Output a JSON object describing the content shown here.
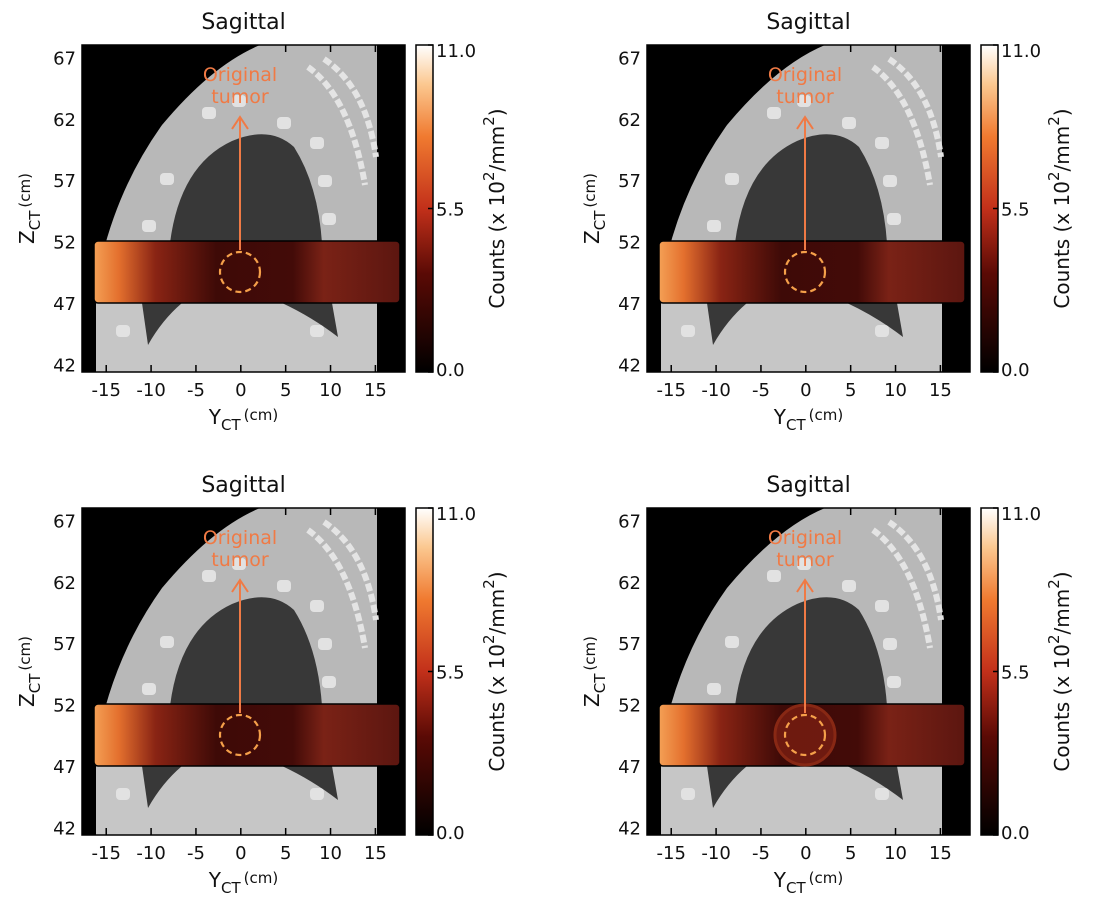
{
  "chart_data": [
    {
      "type": "heatmap",
      "title": "Sagittal",
      "x_label": {
        "main": "Y",
        "sub": "CT",
        "unit": "(cm)"
      },
      "y_label": {
        "main": "Z",
        "sub": "CT",
        "unit": "(cm)"
      },
      "colorbar_label": [
        "Counts (x 10",
        "2",
        "/mm",
        "2",
        ")"
      ],
      "annotation": [
        "Original",
        "tumor"
      ],
      "xlim": [
        -17.7,
        18.3
      ],
      "xticks": [
        -15,
        -10,
        -5,
        0,
        5,
        10,
        15
      ],
      "ylim": [
        41.4,
        68
      ],
      "yticks": [
        42,
        47,
        52,
        57,
        62,
        67
      ],
      "clim": [
        0,
        11
      ],
      "cticks": [
        {
          "value": 0,
          "label": "0.0"
        },
        5.5,
        {
          "value": 11,
          "label": "11.0"
        }
      ]
    },
    {
      "type": "heatmap",
      "title": "Sagittal",
      "x_label": {
        "main": "Y",
        "sub": "CT",
        "unit": "(cm)"
      },
      "y_label": {
        "main": "Z",
        "sub": "CT",
        "unit": "(cm)"
      },
      "colorbar_label": [
        "Counts (x 10",
        "2",
        "/mm",
        "2",
        ")"
      ],
      "annotation": [
        "Original",
        "tumor"
      ],
      "xlim": [
        -17.7,
        18.3
      ],
      "xticks": [
        -15,
        -10,
        -5,
        0,
        5,
        10,
        15
      ],
      "ylim": [
        41.4,
        68
      ],
      "yticks": [
        42,
        47,
        52,
        57,
        62,
        67
      ],
      "clim": [
        0,
        11
      ],
      "cticks": [
        {
          "value": 0,
          "label": "0.0"
        },
        5.5,
        {
          "value": 11,
          "label": "11.0"
        }
      ]
    },
    {
      "type": "heatmap",
      "title": "Sagittal",
      "x_label": {
        "main": "Y",
        "sub": "CT",
        "unit": "(cm)"
      },
      "y_label": {
        "main": "Z",
        "sub": "CT",
        "unit": "(cm)"
      },
      "colorbar_label": [
        "Counts (x 10",
        "2",
        "/mm",
        "2",
        ")"
      ],
      "annotation": [
        "Original",
        "tumor"
      ],
      "xlim": [
        -17.7,
        18.3
      ],
      "xticks": [
        -15,
        -10,
        -5,
        0,
        5,
        10,
        15
      ],
      "ylim": [
        41.4,
        68
      ],
      "yticks": [
        42,
        47,
        52,
        57,
        62,
        67
      ],
      "clim": [
        0,
        11
      ],
      "cticks": [
        {
          "value": 0,
          "label": "0.0"
        },
        5.5,
        {
          "value": 11,
          "label": "11.0"
        }
      ]
    },
    {
      "type": "heatmap",
      "title": "Sagittal",
      "x_label": {
        "main": "Y",
        "sub": "CT",
        "unit": "(cm)"
      },
      "y_label": {
        "main": "Z",
        "sub": "CT",
        "unit": "(cm)"
      },
      "colorbar_label": [
        "Counts (x 10",
        "2",
        "/mm",
        "2",
        ")"
      ],
      "annotation": [
        "Original",
        "tumor"
      ],
      "xlim": [
        -17.7,
        18.3
      ],
      "xticks": [
        -15,
        -10,
        -5,
        0,
        5,
        10,
        15
      ],
      "ylim": [
        41.4,
        68
      ],
      "yticks": [
        42,
        47,
        52,
        57,
        62,
        67
      ],
      "clim": [
        0,
        11
      ],
      "cticks": [
        {
          "value": 0,
          "label": "0.0"
        },
        5.5,
        {
          "value": 11,
          "label": "11.0"
        }
      ]
    }
  ]
}
